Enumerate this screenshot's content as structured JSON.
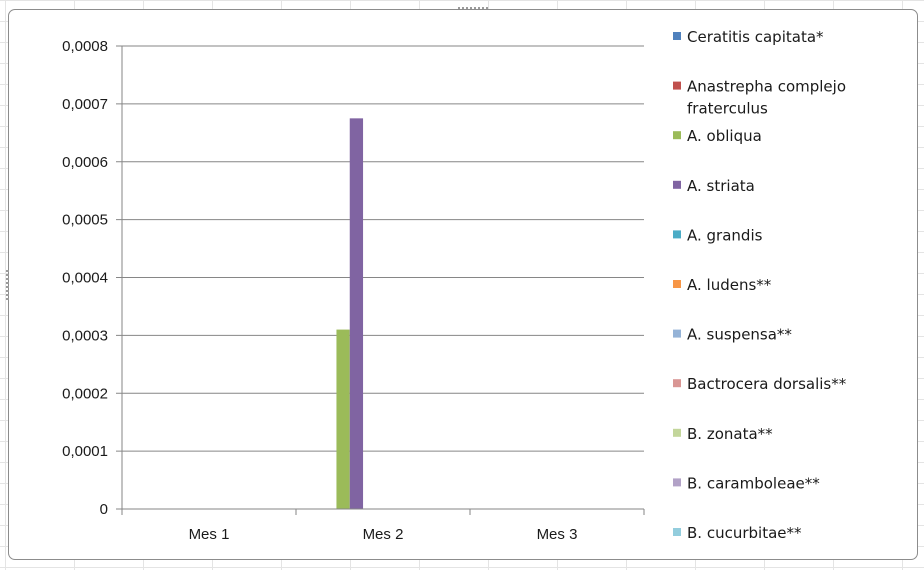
{
  "chart_data": {
    "type": "bar",
    "title": "",
    "xlabel": "",
    "ylabel": "",
    "categories": [
      "Mes 1",
      "Mes 2",
      "Mes 3"
    ],
    "ylim": [
      0,
      0.0008
    ],
    "yticks": [
      "0",
      "0,0001",
      "0,0002",
      "0,0003",
      "0,0004",
      "0,0005",
      "0,0006",
      "0,0007",
      "0,0008"
    ],
    "grid": true,
    "legend_position": "right",
    "series": [
      {
        "name": "Ceratitis capitata*",
        "color": "#4f81bd",
        "values": [
          0,
          0,
          0
        ]
      },
      {
        "name": "Anastrepha complejo fraterculus",
        "color": "#c0504d",
        "values": [
          0,
          0,
          0
        ]
      },
      {
        "name": "A. obliqua",
        "color": "#9bbb59",
        "values": [
          0,
          0.00031,
          0
        ]
      },
      {
        "name": "A. striata",
        "color": "#8064a2",
        "values": [
          0,
          0.000675,
          0
        ]
      },
      {
        "name": "A. grandis",
        "color": "#4bacc6",
        "values": [
          0,
          0,
          0
        ]
      },
      {
        "name": "A. ludens**",
        "color": "#f79646",
        "values": [
          0,
          0,
          0
        ]
      },
      {
        "name": "A. suspensa**",
        "color": "#95b3d7",
        "values": [
          0,
          0,
          0
        ]
      },
      {
        "name": "Bactrocera dorsalis**",
        "color": "#d99694",
        "values": [
          0,
          0,
          0
        ]
      },
      {
        "name": "B. zonata**",
        "color": "#c3d69b",
        "values": [
          0,
          0,
          0
        ]
      },
      {
        "name": "B. caramboleae**",
        "color": "#b2a2c7",
        "values": [
          0,
          0,
          0
        ]
      },
      {
        "name": "B. cucurbitae**",
        "color": "#93cddd",
        "values": [
          0,
          0,
          0
        ]
      }
    ]
  }
}
